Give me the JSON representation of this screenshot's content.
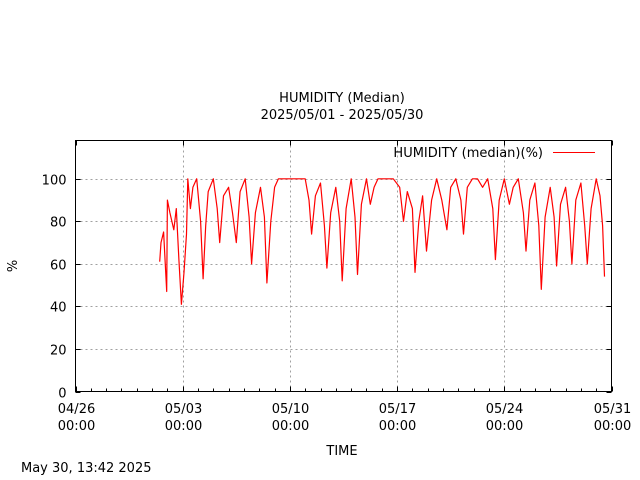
{
  "chart_data": {
    "type": "line",
    "title": "HUMIDITY (Median)",
    "subtitle": "2025/05/01 - 2025/05/30",
    "xlabel": "TIME",
    "ylabel": "%",
    "xlim": [
      "2025-04-26 00:00",
      "2025-05-31 00:00"
    ],
    "ylim": [
      0,
      118
    ],
    "y_ticks": [
      0,
      20,
      40,
      60,
      80,
      100
    ],
    "x_ticks": [
      {
        "date": "2025-04-26",
        "label_line1": "04/26",
        "label_line2": "00:00"
      },
      {
        "date": "2025-05-03",
        "label_line1": "05/03",
        "label_line2": "00:00"
      },
      {
        "date": "2025-05-10",
        "label_line1": "05/10",
        "label_line2": "00:00"
      },
      {
        "date": "2025-05-17",
        "label_line1": "05/17",
        "label_line2": "00:00"
      },
      {
        "date": "2025-05-24",
        "label_line1": "05/24",
        "label_line2": "00:00"
      },
      {
        "date": "2025-05-31",
        "label_line1": "05/31",
        "label_line2": "00:00"
      }
    ],
    "grid": true,
    "legend_position": "top-right",
    "series": [
      {
        "name": "HUMIDITY (median)(%)",
        "color": "#ff0000",
        "points": [
          [
            "2025-05-01 12:00",
            61
          ],
          [
            "2025-05-01 14:00",
            70
          ],
          [
            "2025-05-01 18:00",
            75
          ],
          [
            "2025-05-01 23:00",
            47
          ],
          [
            "2025-05-02 00:00",
            90
          ],
          [
            "2025-05-02 04:00",
            84
          ],
          [
            "2025-05-02 10:00",
            76
          ],
          [
            "2025-05-02 14:00",
            86
          ],
          [
            "2025-05-02 18:00",
            62
          ],
          [
            "2025-05-02 22:00",
            41
          ],
          [
            "2025-05-03 02:00",
            56
          ],
          [
            "2025-05-03 06:00",
            74
          ],
          [
            "2025-05-03 08:00",
            100
          ],
          [
            "2025-05-03 12:00",
            86
          ],
          [
            "2025-05-03 16:00",
            96
          ],
          [
            "2025-05-03 22:00",
            100
          ],
          [
            "2025-05-04 04:00",
            80
          ],
          [
            "2025-05-04 08:00",
            53
          ],
          [
            "2025-05-04 12:00",
            78
          ],
          [
            "2025-05-04 16:00",
            94
          ],
          [
            "2025-05-05 00:00",
            100
          ],
          [
            "2025-05-05 06:00",
            86
          ],
          [
            "2025-05-05 10:00",
            70
          ],
          [
            "2025-05-05 16:00",
            92
          ],
          [
            "2025-05-06 00:00",
            96
          ],
          [
            "2025-05-06 06:00",
            84
          ],
          [
            "2025-05-06 12:00",
            70
          ],
          [
            "2025-05-06 18:00",
            94
          ],
          [
            "2025-05-07 02:00",
            100
          ],
          [
            "2025-05-07 08:00",
            82
          ],
          [
            "2025-05-07 12:00",
            60
          ],
          [
            "2025-05-07 18:00",
            84
          ],
          [
            "2025-05-08 02:00",
            96
          ],
          [
            "2025-05-08 08:00",
            82
          ],
          [
            "2025-05-08 12:00",
            51
          ],
          [
            "2025-05-08 18:00",
            80
          ],
          [
            "2025-05-09 00:00",
            96
          ],
          [
            "2025-05-09 06:00",
            100
          ],
          [
            "2025-05-09 12:00",
            100
          ],
          [
            "2025-05-10 00:00",
            100
          ],
          [
            "2025-05-10 12:00",
            100
          ],
          [
            "2025-05-11 00:00",
            100
          ],
          [
            "2025-05-11 06:00",
            90
          ],
          [
            "2025-05-11 10:00",
            74
          ],
          [
            "2025-05-11 16:00",
            92
          ],
          [
            "2025-05-12 00:00",
            98
          ],
          [
            "2025-05-12 06:00",
            78
          ],
          [
            "2025-05-12 10:00",
            58
          ],
          [
            "2025-05-12 16:00",
            84
          ],
          [
            "2025-05-13 00:00",
            96
          ],
          [
            "2025-05-13 06:00",
            80
          ],
          [
            "2025-05-13 10:00",
            52
          ],
          [
            "2025-05-13 16:00",
            86
          ],
          [
            "2025-05-14 00:00",
            100
          ],
          [
            "2025-05-14 06:00",
            82
          ],
          [
            "2025-05-14 10:00",
            55
          ],
          [
            "2025-05-14 16:00",
            88
          ],
          [
            "2025-05-15 00:00",
            100
          ],
          [
            "2025-05-15 06:00",
            88
          ],
          [
            "2025-05-15 12:00",
            96
          ],
          [
            "2025-05-15 18:00",
            100
          ],
          [
            "2025-05-16 06:00",
            100
          ],
          [
            "2025-05-16 18:00",
            100
          ],
          [
            "2025-05-17 04:00",
            96
          ],
          [
            "2025-05-17 10:00",
            80
          ],
          [
            "2025-05-17 16:00",
            94
          ],
          [
            "2025-05-18 00:00",
            86
          ],
          [
            "2025-05-18 04:00",
            56
          ],
          [
            "2025-05-18 10:00",
            80
          ],
          [
            "2025-05-18 16:00",
            92
          ],
          [
            "2025-05-18 22:00",
            66
          ],
          [
            "2025-05-19 06:00",
            90
          ],
          [
            "2025-05-19 14:00",
            100
          ],
          [
            "2025-05-19 22:00",
            90
          ],
          [
            "2025-05-20 06:00",
            76
          ],
          [
            "2025-05-20 12:00",
            96
          ],
          [
            "2025-05-20 20:00",
            100
          ],
          [
            "2025-05-21 04:00",
            90
          ],
          [
            "2025-05-21 08:00",
            74
          ],
          [
            "2025-05-21 14:00",
            96
          ],
          [
            "2025-05-21 22:00",
            100
          ],
          [
            "2025-05-22 06:00",
            100
          ],
          [
            "2025-05-22 14:00",
            96
          ],
          [
            "2025-05-22 22:00",
            100
          ],
          [
            "2025-05-23 06:00",
            86
          ],
          [
            "2025-05-23 10:00",
            62
          ],
          [
            "2025-05-23 16:00",
            90
          ],
          [
            "2025-05-24 00:00",
            100
          ],
          [
            "2025-05-24 08:00",
            88
          ],
          [
            "2025-05-24 14:00",
            96
          ],
          [
            "2025-05-24 22:00",
            100
          ],
          [
            "2025-05-25 06:00",
            84
          ],
          [
            "2025-05-25 10:00",
            66
          ],
          [
            "2025-05-25 16:00",
            90
          ],
          [
            "2025-05-26 00:00",
            98
          ],
          [
            "2025-05-26 06:00",
            78
          ],
          [
            "2025-05-26 10:00",
            48
          ],
          [
            "2025-05-26 16:00",
            82
          ],
          [
            "2025-05-27 00:00",
            96
          ],
          [
            "2025-05-27 06:00",
            82
          ],
          [
            "2025-05-27 10:00",
            59
          ],
          [
            "2025-05-27 16:00",
            88
          ],
          [
            "2025-05-28 00:00",
            96
          ],
          [
            "2025-05-28 06:00",
            80
          ],
          [
            "2025-05-28 10:00",
            60
          ],
          [
            "2025-05-28 16:00",
            90
          ],
          [
            "2025-05-29 00:00",
            98
          ],
          [
            "2025-05-29 06:00",
            78
          ],
          [
            "2025-05-29 10:00",
            60
          ],
          [
            "2025-05-29 16:00",
            86
          ],
          [
            "2025-05-30 00:00",
            100
          ],
          [
            "2025-05-30 06:00",
            92
          ],
          [
            "2025-05-30 10:00",
            78
          ],
          [
            "2025-05-30 13:00",
            54
          ]
        ]
      }
    ]
  },
  "footer": {
    "timestamp": "May 30, 13:42 2025"
  }
}
